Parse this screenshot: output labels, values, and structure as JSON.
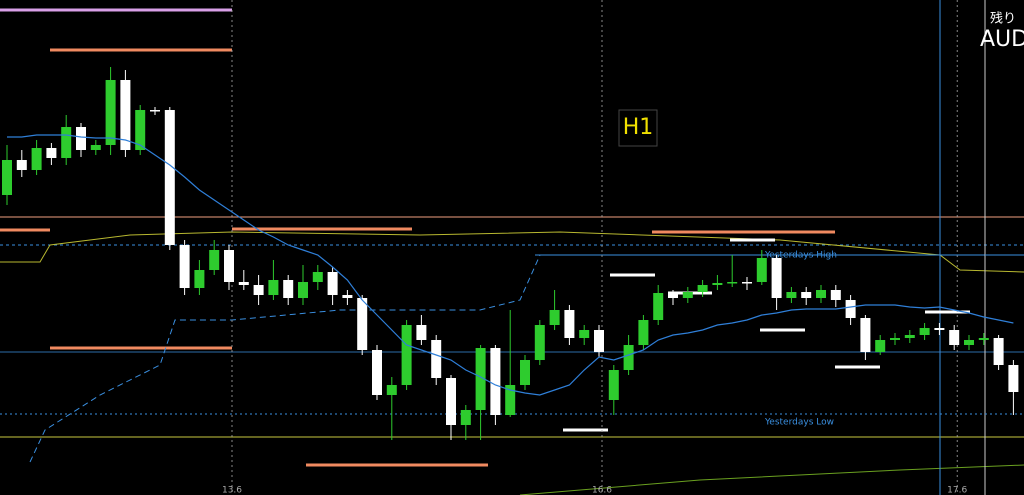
{
  "chart_data": {
    "type": "candlestick",
    "timeframe": "H1",
    "symbol": "AUD",
    "remaining_label": "残り",
    "up_color": "#2ecc2e",
    "down_color": "#ffffff",
    "ma_color": "#2f7fd8",
    "ylim": [
      0,
      495
    ],
    "categories": [
      null,
      null,
      null,
      null,
      null,
      null,
      null,
      null,
      null,
      null,
      null,
      null,
      null,
      null,
      null,
      "13.6",
      null,
      null,
      null,
      null,
      null,
      null,
      null,
      null,
      null,
      null,
      null,
      null,
      null,
      null,
      null,
      null,
      null,
      null,
      null,
      null,
      null,
      null,
      null,
      null,
      "16.6",
      null,
      null,
      null,
      null,
      null,
      null,
      null,
      null,
      null,
      null,
      null,
      null,
      null,
      null,
      null,
      null,
      null,
      null,
      null,
      null,
      null,
      null,
      null,
      "17.6",
      null,
      null,
      null,
      null
    ],
    "ohlc": [
      [
        300,
        350,
        290,
        335
      ],
      [
        335,
        345,
        318,
        325
      ],
      [
        325,
        355,
        320,
        347
      ],
      [
        347,
        352,
        330,
        337
      ],
      [
        337,
        380,
        330,
        368
      ],
      [
        368,
        372,
        338,
        345
      ],
      [
        345,
        355,
        340,
        350
      ],
      [
        350,
        428,
        340,
        415
      ],
      [
        415,
        425,
        338,
        345
      ],
      [
        345,
        390,
        340,
        385
      ],
      [
        385,
        388,
        380,
        385
      ],
      [
        385,
        388,
        245,
        250
      ],
      [
        250,
        255,
        200,
        207
      ],
      [
        207,
        235,
        200,
        225
      ],
      [
        225,
        255,
        220,
        245
      ],
      [
        245,
        250,
        205,
        213
      ],
      [
        213,
        225,
        205,
        210
      ],
      [
        210,
        220,
        190,
        200
      ],
      [
        200,
        235,
        195,
        215
      ],
      [
        215,
        220,
        190,
        197
      ],
      [
        197,
        230,
        190,
        213
      ],
      [
        213,
        230,
        205,
        223
      ],
      [
        223,
        228,
        190,
        200
      ],
      [
        200,
        205,
        190,
        197
      ],
      [
        197,
        200,
        140,
        145
      ],
      [
        145,
        150,
        95,
        100
      ],
      [
        100,
        118,
        55,
        110
      ],
      [
        110,
        175,
        105,
        170
      ],
      [
        170,
        180,
        150,
        155
      ],
      [
        155,
        160,
        110,
        117
      ],
      [
        117,
        120,
        55,
        70
      ],
      [
        70,
        90,
        55,
        85
      ],
      [
        85,
        150,
        55,
        147
      ],
      [
        147,
        150,
        70,
        80
      ],
      [
        80,
        185,
        78,
        110
      ],
      [
        110,
        140,
        105,
        135
      ],
      [
        135,
        175,
        130,
        170
      ],
      [
        170,
        205,
        165,
        185
      ],
      [
        185,
        190,
        150,
        157
      ],
      [
        157,
        170,
        150,
        165
      ],
      [
        165,
        170,
        138,
        143
      ],
      [
        95,
        130,
        80,
        125
      ],
      [
        125,
        160,
        120,
        150
      ],
      [
        150,
        180,
        145,
        175
      ],
      [
        175,
        210,
        170,
        202
      ],
      [
        202,
        205,
        190,
        197
      ],
      [
        197,
        208,
        192,
        203
      ],
      [
        203,
        215,
        198,
        210
      ],
      [
        210,
        220,
        205,
        212
      ],
      [
        212,
        240,
        208,
        213
      ],
      [
        213,
        218,
        205,
        212
      ],
      [
        213,
        245,
        210,
        237
      ],
      [
        237,
        240,
        185,
        197
      ],
      [
        197,
        208,
        192,
        203
      ],
      [
        203,
        208,
        190,
        197
      ],
      [
        197,
        210,
        192,
        205
      ],
      [
        205,
        210,
        188,
        195
      ],
      [
        195,
        200,
        170,
        177
      ],
      [
        177,
        180,
        135,
        143
      ],
      [
        143,
        160,
        140,
        155
      ],
      [
        155,
        162,
        150,
        157
      ],
      [
        157,
        165,
        152,
        160
      ],
      [
        160,
        172,
        155,
        167
      ],
      [
        167,
        172,
        160,
        165
      ],
      [
        165,
        170,
        145,
        150
      ],
      [
        150,
        160,
        145,
        155
      ],
      [
        155,
        162,
        150,
        157
      ],
      [
        157,
        160,
        125,
        130
      ],
      [
        130,
        135,
        80,
        103
      ]
    ],
    "ma": [
      358,
      358,
      360,
      360,
      360,
      358,
      357,
      357,
      355,
      350,
      340,
      330,
      318,
      305,
      295,
      285,
      275,
      265,
      258,
      250,
      245,
      240,
      228,
      215,
      195,
      180,
      165,
      150,
      145,
      140,
      135,
      125,
      118,
      110,
      105,
      102,
      100,
      105,
      110,
      125,
      138,
      135,
      140,
      145,
      155,
      160,
      162,
      165,
      170,
      172,
      175,
      180,
      182,
      185,
      186,
      186,
      186,
      188,
      190,
      190,
      190,
      188,
      187,
      188,
      185,
      182,
      178,
      175,
      172
    ],
    "levels": [
      {
        "label": "Yesterdays High",
        "value": 240
      },
      {
        "label": "Yesterdays Low",
        "value": 81
      }
    ]
  }
}
